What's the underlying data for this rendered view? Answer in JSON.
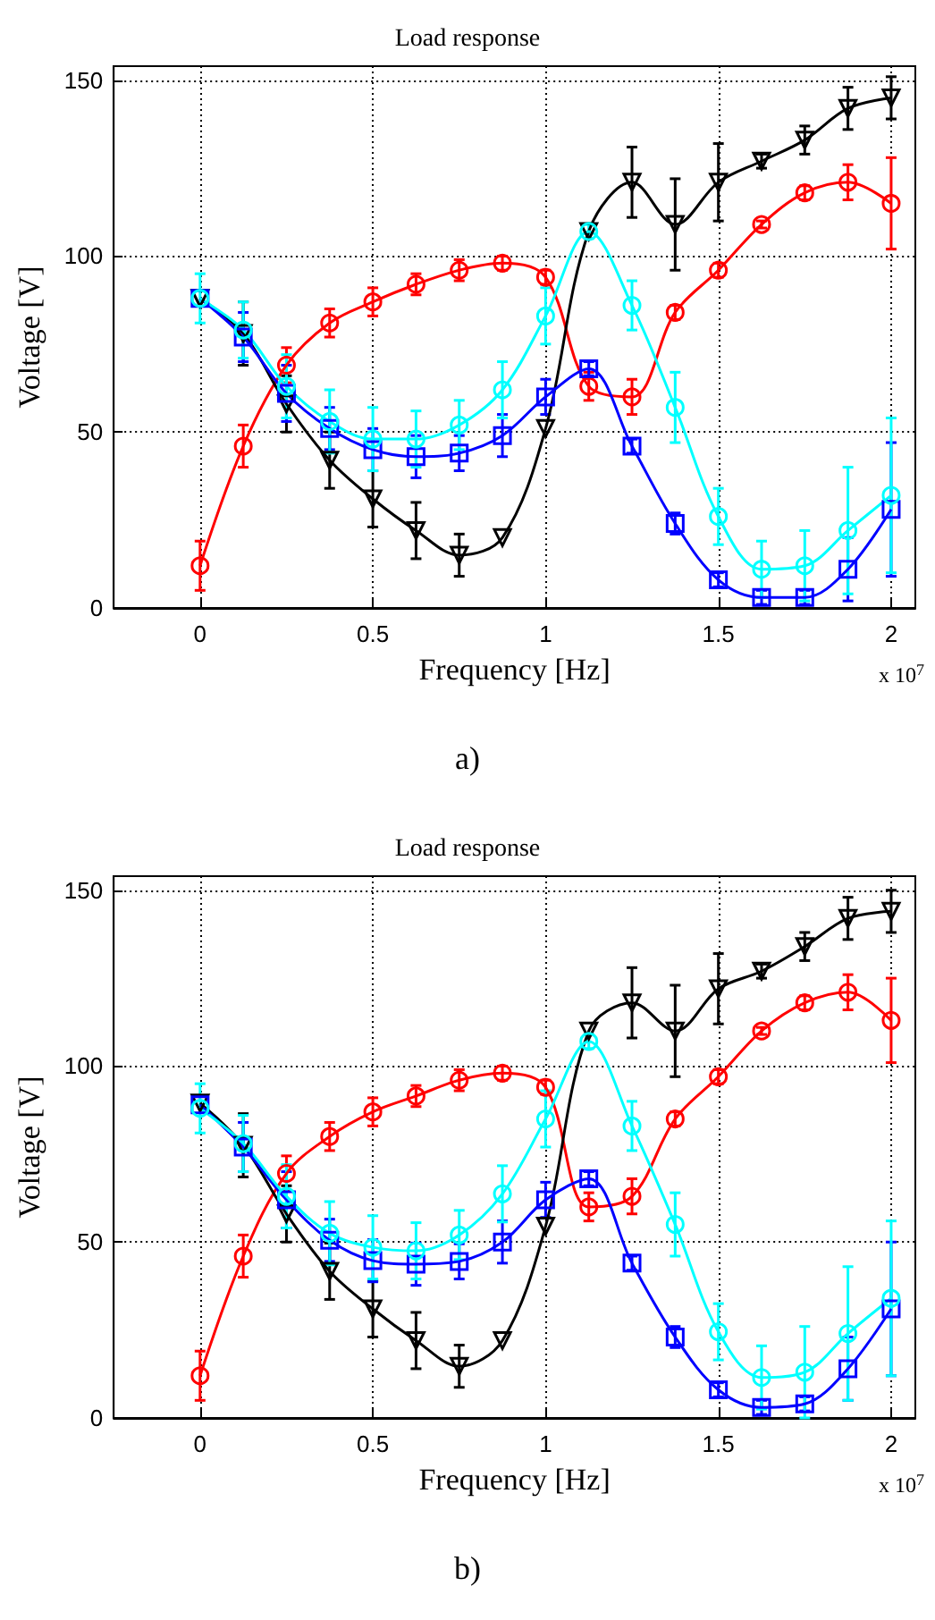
{
  "chart_data": [
    {
      "type": "line",
      "title": "Load response",
      "xlabel": "Frequency [Hz]",
      "ylabel": "Voltage [V]",
      "annotations": [
        "x 10$^{7}$",
        "a)"
      ],
      "x": [
        0,
        0.125,
        0.25,
        0.375,
        0.5,
        0.625,
        0.75,
        0.875,
        1,
        1.125,
        1.25,
        1.375,
        1.5,
        1.625,
        1.75,
        1.875,
        2
      ],
      "xlim": [
        -0.25,
        2.07
      ],
      "xticks": [
        0,
        0.5,
        1,
        1.5,
        2
      ],
      "ylim": [
        0,
        154
      ],
      "yticks": [
        0,
        50,
        100,
        150
      ],
      "grid": true,
      "line_style": "solid",
      "series": [
        {
          "color": "#ff0000",
          "marker": "circle",
          "values": [
            12,
            46,
            69,
            81,
            87,
            92,
            96,
            98,
            94,
            63,
            60,
            84,
            96,
            109,
            118,
            121,
            115
          ],
          "errors": [
            7,
            6,
            5,
            4,
            4,
            3,
            3,
            2,
            2,
            4,
            5,
            2,
            2,
            1,
            2,
            5,
            13
          ]
        },
        {
          "color": "#000000",
          "marker": "triangle",
          "values": [
            88,
            78,
            58,
            42,
            31,
            22,
            15,
            20,
            51,
            107,
            121,
            109,
            121,
            127,
            133,
            142,
            145
          ],
          "errors": [
            null,
            9,
            8,
            8,
            8,
            8,
            6,
            null,
            null,
            null,
            10,
            13,
            11,
            2,
            4,
            6,
            6
          ]
        },
        {
          "color": "#0000ff",
          "marker": "square",
          "values": [
            88,
            77,
            61,
            51,
            45,
            43,
            44,
            49,
            60,
            68,
            46,
            24,
            8,
            3,
            3,
            11,
            28
          ],
          "errors": [
            null,
            7,
            8,
            6,
            6,
            6,
            5,
            6,
            5,
            2,
            2,
            3,
            2,
            2,
            2,
            9,
            19
          ]
        },
        {
          "color": "#00ffff",
          "marker": "circle",
          "values": [
            88,
            79,
            63,
            53,
            48,
            48,
            52,
            62,
            83,
            107,
            86,
            57,
            26,
            11,
            12,
            22,
            32
          ],
          "errors": [
            7,
            8,
            9,
            9,
            9,
            8,
            7,
            8,
            8,
            2,
            7,
            10,
            8,
            8,
            10,
            18,
            22
          ]
        }
      ]
    },
    {
      "type": "line",
      "title": "Load response",
      "xlabel": "Frequency [Hz]",
      "ylabel": "Voltage [V]",
      "annotations": [
        "x 10$^{7}$",
        "b)"
      ],
      "x": [
        0,
        0.125,
        0.25,
        0.375,
        0.5,
        0.625,
        0.75,
        0.875,
        1,
        1.125,
        1.25,
        1.375,
        1.5,
        1.625,
        1.75,
        1.875,
        2
      ],
      "xlim": [
        -0.25,
        2.07
      ],
      "xticks": [
        0,
        0.5,
        1,
        1.5,
        2
      ],
      "ylim": [
        0,
        154
      ],
      "yticks": [
        0,
        50,
        100,
        150
      ],
      "grid": true,
      "line_style": "solid",
      "series": [
        {
          "color": "#ff0000",
          "marker": "circle",
          "values": [
            12,
            46,
            69.5,
            80,
            87,
            91.5,
            96,
            98,
            94,
            60,
            63,
            85,
            97,
            110,
            118,
            121,
            113
          ],
          "errors": [
            7,
            6,
            5,
            4,
            4,
            3,
            3,
            2,
            2,
            4,
            5,
            2,
            2,
            1,
            2,
            5,
            12
          ]
        },
        {
          "color": "#000000",
          "marker": "triangle",
          "values": [
            89.5,
            77.5,
            58,
            41.7,
            31,
            22,
            14.7,
            22,
            54.5,
            110,
            118,
            110,
            122,
            127,
            134,
            142,
            144
          ],
          "errors": [
            null,
            9,
            8,
            8,
            8,
            8,
            6,
            null,
            null,
            null,
            10,
            13,
            10,
            2,
            4,
            6,
            6
          ]
        },
        {
          "color": "#0000ff",
          "marker": "square",
          "values": [
            89,
            77,
            62,
            50.5,
            44.7,
            43.7,
            44.5,
            50,
            62,
            68,
            44,
            23,
            8,
            3,
            4,
            14,
            31
          ],
          "errors": [
            null,
            7,
            8,
            6,
            6,
            6,
            5,
            6,
            5,
            2,
            2,
            3,
            2,
            2,
            2,
            9,
            19
          ]
        },
        {
          "color": "#00ffff",
          "marker": "circle",
          "values": [
            88,
            78,
            63,
            52.5,
            48.5,
            47.5,
            52,
            63.7,
            85,
            107,
            83,
            55,
            24.5,
            11.5,
            13,
            24,
            34
          ],
          "errors": [
            7,
            8,
            9,
            9,
            9,
            8,
            7,
            8,
            8,
            2,
            7,
            9,
            8,
            9,
            13,
            19,
            22
          ]
        }
      ]
    }
  ]
}
